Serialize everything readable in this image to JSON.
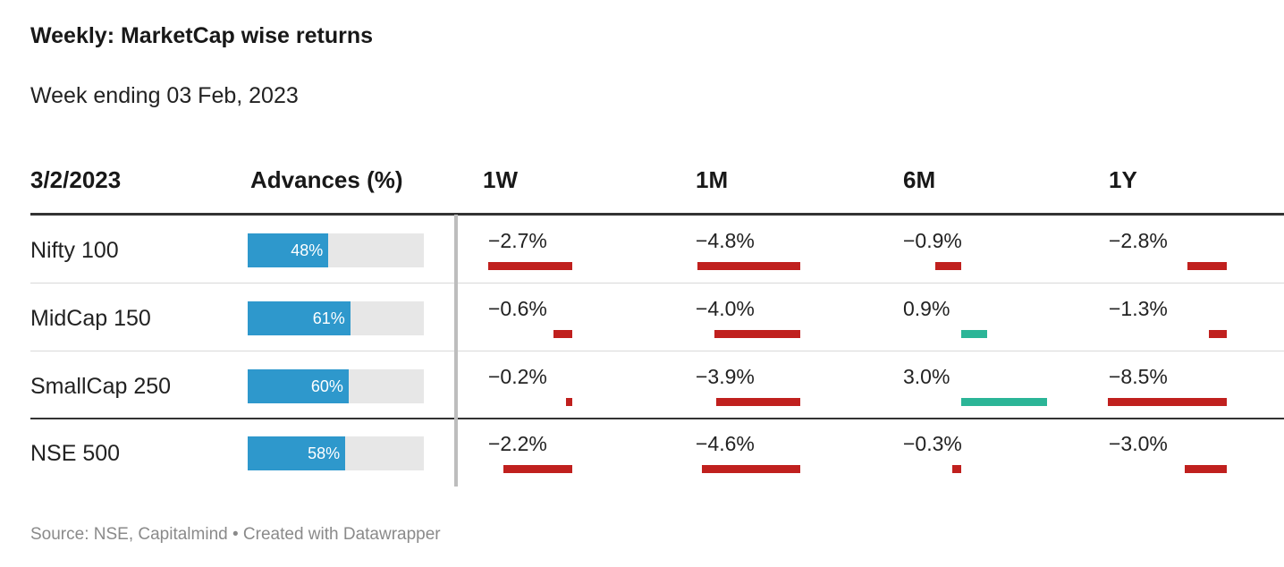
{
  "title": "Weekly: MarketCap wise returns",
  "subtitle": "Week ending 03 Feb, 2023",
  "source_note": "Source: NSE, Capitalmind • Created with Datawrapper",
  "colors": {
    "advances": "#2e98cc",
    "advances_track": "#e7e7e7",
    "negative": "#c0201e",
    "positive": "#2bb597"
  },
  "chart_data": {
    "type": "table",
    "columns": [
      "3/2/2023",
      "Advances (%)",
      "1W",
      "1M",
      "6M",
      "1Y"
    ],
    "rows": [
      {
        "name": "Nifty 100",
        "advances": 48,
        "advances_label": "48%",
        "returns": [
          -2.7,
          -4.8,
          -0.9,
          -2.8
        ],
        "labels": [
          "−2.7%",
          "−4.8%",
          "−0.9%",
          "−2.8%"
        ]
      },
      {
        "name": "MidCap 150",
        "advances": 61,
        "advances_label": "61%",
        "returns": [
          -0.6,
          -4.0,
          0.9,
          -1.3
        ],
        "labels": [
          "−0.6%",
          "−4.0%",
          "0.9%",
          "−1.3%"
        ]
      },
      {
        "name": "SmallCap 250",
        "advances": 60,
        "advances_label": "60%",
        "returns": [
          -0.2,
          -3.9,
          3.0,
          -8.5
        ],
        "labels": [
          "−0.2%",
          "−3.9%",
          "3.0%",
          "−8.5%"
        ]
      },
      {
        "name": "NSE 500",
        "advances": 58,
        "advances_label": "58%",
        "returns": [
          -2.2,
          -4.6,
          -0.3,
          -3.0
        ],
        "labels": [
          "−2.2%",
          "−4.6%",
          "−0.3%",
          "−3.0%"
        ]
      }
    ]
  }
}
